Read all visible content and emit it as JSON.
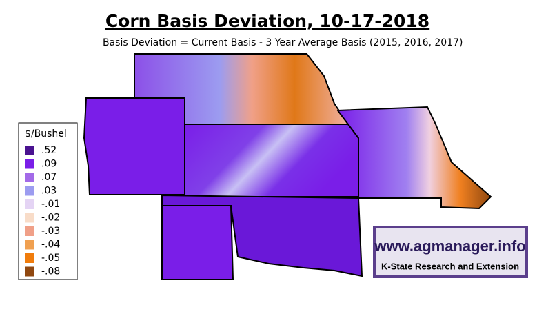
{
  "title": "Corn Basis Deviation, 10-17-2018",
  "subtitle": "Basis Deviation = Current Basis - 3 Year Average Basis (2015, 2016, 2017)",
  "legend": {
    "title": "$/Bushel",
    "items": [
      {
        "label": ".52",
        "color": "#4a1290"
      },
      {
        "label": ".09",
        "color": "#7a1ee8"
      },
      {
        "label": ".07",
        "color": "#a36ae8"
      },
      {
        "label": ".03",
        "color": "#9c9cf0"
      },
      {
        "label": "-.01",
        "color": "#e4d4f4"
      },
      {
        "label": "-.02",
        "color": "#f8dcc8"
      },
      {
        "label": "-.03",
        "color": "#f0a088"
      },
      {
        "label": "-.04",
        "color": "#f0a050"
      },
      {
        "label": "-.05",
        "color": "#f07c0c"
      },
      {
        "label": "-.08",
        "color": "#904810"
      }
    ]
  },
  "logo": {
    "url": "www.agmanager.info",
    "org": "K-State Research and Extension"
  }
}
